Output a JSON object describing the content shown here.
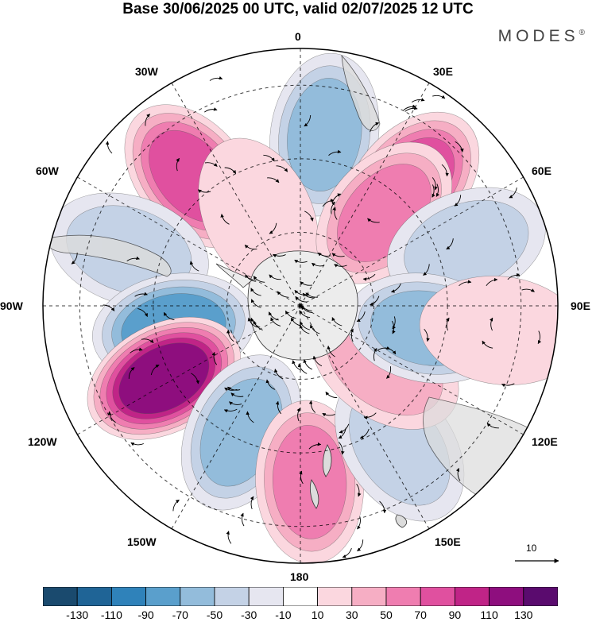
{
  "title": "Base 30/06/2025 00 UTC, valid 02/07/2025 12 UTC",
  "brand": "MODES",
  "brand_mark": "®",
  "lon_labels": {
    "n": "0",
    "ne": "30E",
    "e1": "60E",
    "e": "90E",
    "se1": "120E",
    "se": "150E",
    "s": "180",
    "sw": "150W",
    "w1": "120W",
    "w": "90W",
    "nw1": "60W",
    "nw": "30W"
  },
  "reference_vector": "10",
  "colorbar": {
    "colors": [
      "#1a4a6e",
      "#1f6496",
      "#2f82ba",
      "#5a9fcc",
      "#93bcdb",
      "#c4d2e6",
      "#e6e6f0",
      "#ffffff",
      "#fbd7df",
      "#f6aec4",
      "#ef7db0",
      "#e0509f",
      "#c02487",
      "#8e0e7e",
      "#5a0b6e"
    ],
    "ticks": [
      "-130",
      "-110",
      "-90",
      "-70",
      "-50",
      "-30",
      "-10",
      "10",
      "30",
      "50",
      "70",
      "90",
      "110",
      "130"
    ]
  },
  "anomaly_centers": [
    {
      "lon": -40,
      "lat": -44,
      "sign": "positive",
      "value": 85
    },
    {
      "lon": 8,
      "lat": -43,
      "sign": "negative",
      "value": -70
    },
    {
      "lon": 42,
      "lat": -45,
      "sign": "positive",
      "value": 95
    },
    {
      "lon": -72,
      "lat": -41,
      "sign": "negative",
      "value": -45
    },
    {
      "lon": -25,
      "lat": -63,
      "sign": "positive",
      "value": 30
    },
    {
      "lon": 42,
      "lat": -56,
      "sign": "positive",
      "value": 70
    },
    {
      "lon": 70,
      "lat": -42,
      "sign": "negative",
      "value": -45
    },
    {
      "lon": -100,
      "lat": -55,
      "sign": "negative",
      "value": -80
    },
    {
      "lon": -118,
      "lat": -48,
      "sign": "positive",
      "value": 125
    },
    {
      "lon": -155,
      "lat": -52,
      "sign": "negative",
      "value": -60
    },
    {
      "lon": 177,
      "lat": -42,
      "sign": "positive",
      "value": 65
    },
    {
      "lon": 145,
      "lat": -43,
      "sign": "negative",
      "value": -50
    },
    {
      "lon": 125,
      "lat": -62,
      "sign": "positive",
      "value": 55
    },
    {
      "lon": 100,
      "lat": -55,
      "sign": "negative",
      "value": -65
    },
    {
      "lon": 97,
      "lat": -35,
      "sign": "positive",
      "value": 25
    }
  ]
}
